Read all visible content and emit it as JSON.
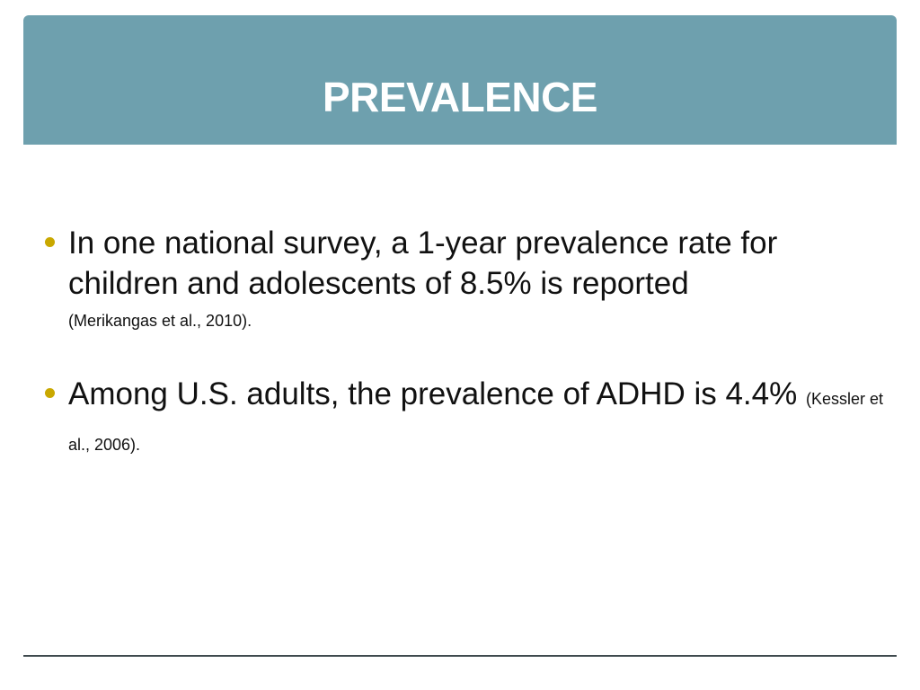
{
  "slide": {
    "title": "PREVALENCE",
    "accent_color": "#6ea0ae",
    "bullet_color": "#c9a800",
    "bullets": [
      {
        "text": "In one national survey, a 1-year prevalence rate for children and adolescents of 8.5% is reported",
        "citation": "(Merikangas et al., 2010)."
      },
      {
        "text": "Among U.S. adults, the prevalence of ADHD is 4.4%",
        "citation": "(Kessler et al., 2006)."
      }
    ]
  }
}
